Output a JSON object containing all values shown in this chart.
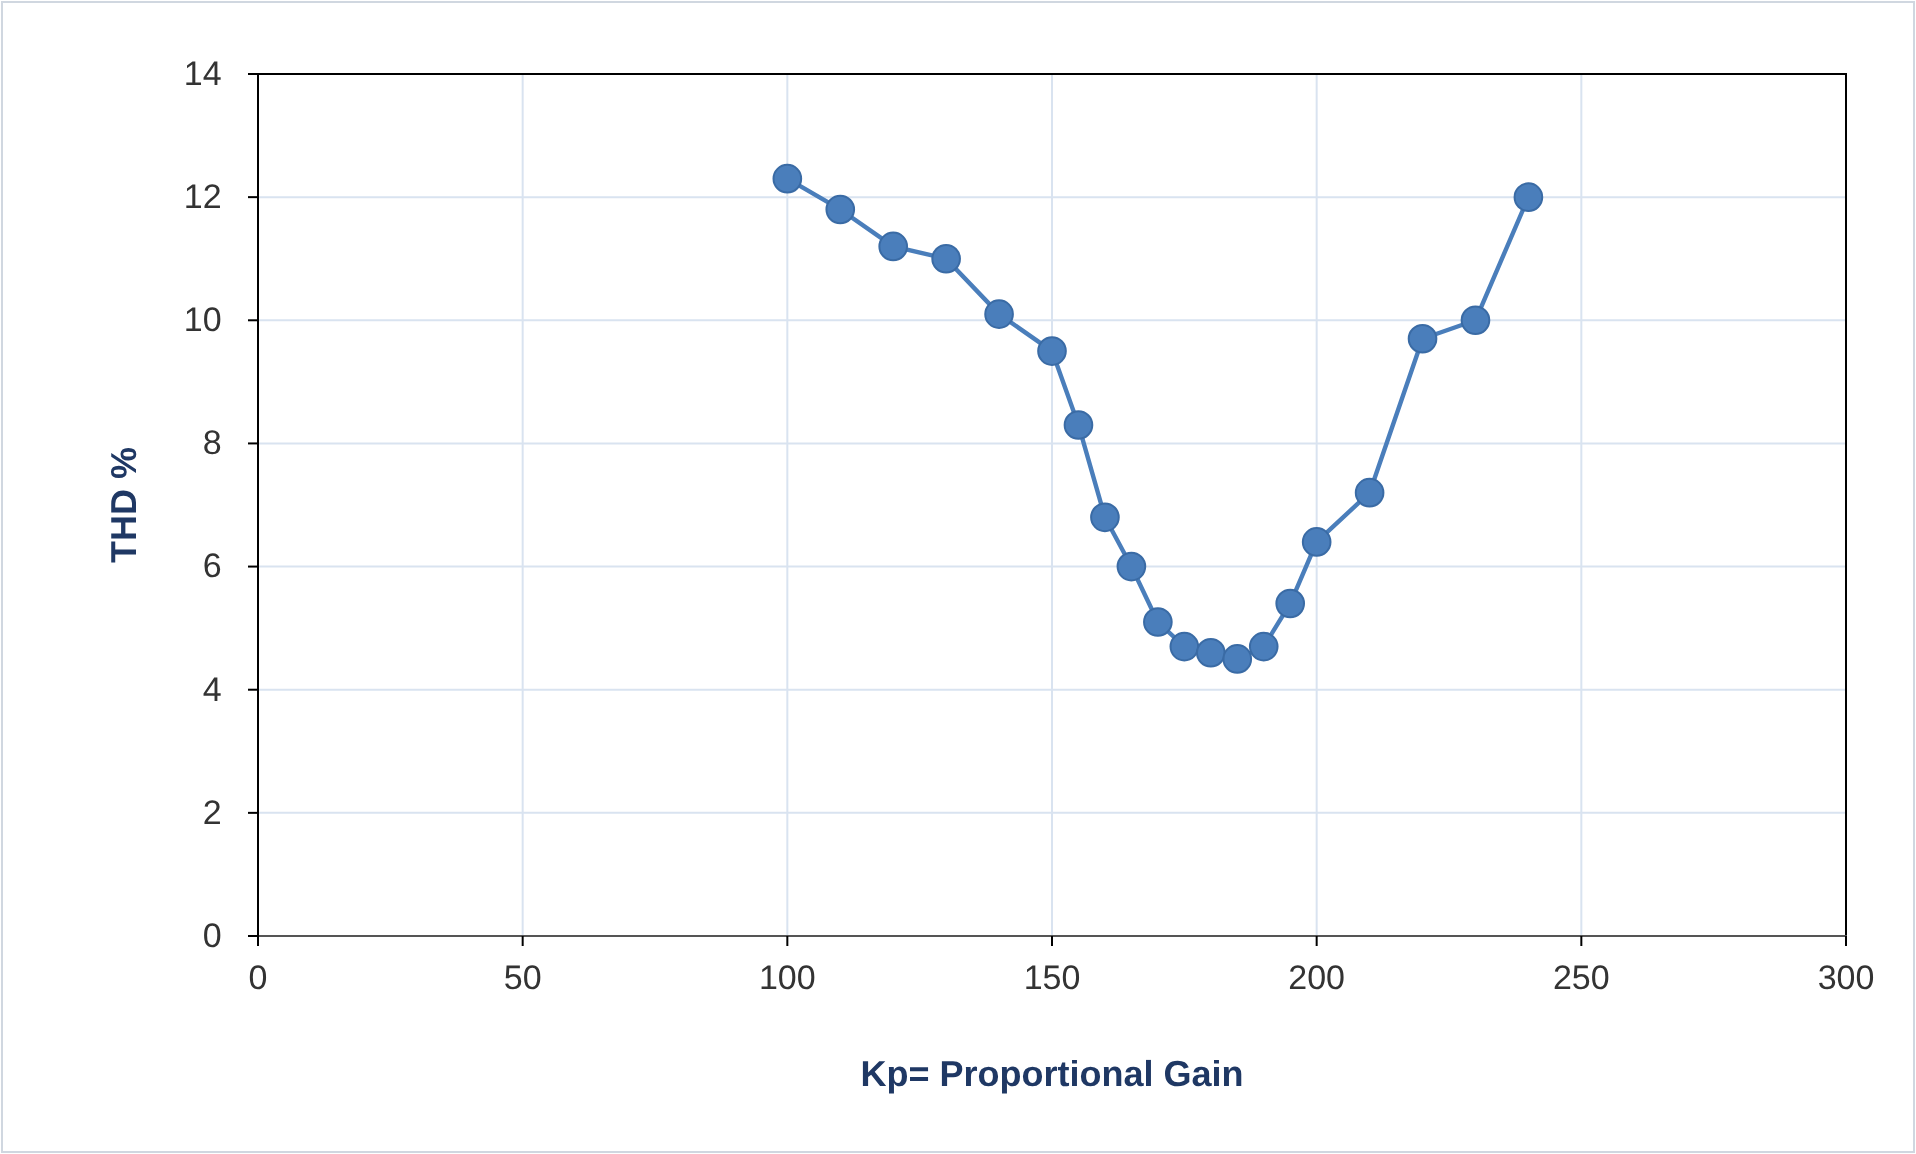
{
  "chart_data": {
    "type": "line",
    "xlabel": "Kp= Proportional Gain",
    "ylabel": "THD %",
    "x": [
      100,
      110,
      120,
      130,
      140,
      150,
      155,
      160,
      165,
      170,
      175,
      180,
      185,
      190,
      195,
      200,
      210,
      220,
      230,
      240
    ],
    "series": [
      {
        "color": "#4a7ebb",
        "values": [
          12.3,
          11.8,
          11.2,
          11.0,
          10.1,
          9.5,
          8.3,
          6.8,
          6.0,
          5.1,
          4.7,
          4.6,
          4.5,
          4.7,
          5.4,
          6.4,
          7.2,
          9.7,
          10.0,
          12.0
        ]
      }
    ],
    "xlim": [
      0,
      300
    ],
    "xticks": [
      0,
      50,
      100,
      150,
      200,
      250,
      300
    ],
    "ylim": [
      0,
      14
    ],
    "yticks": [
      0,
      2,
      4,
      6,
      8,
      10,
      12,
      14
    ],
    "grid": true,
    "marker": "circle",
    "line_style": "solid"
  }
}
